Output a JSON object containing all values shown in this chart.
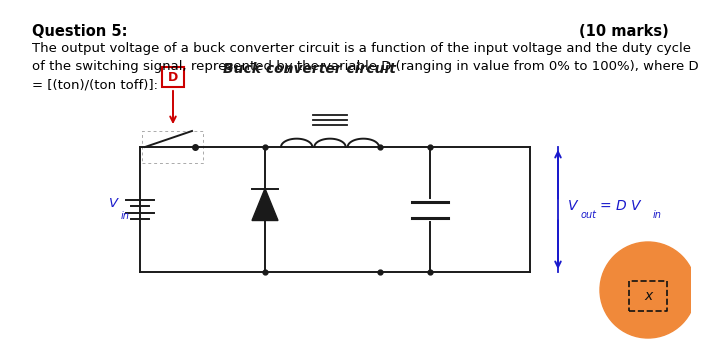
{
  "title_left": "Question 5:",
  "title_right": "(10 marks)",
  "line1": "The output voltage of a buck converter circuit is a function of the input voltage and the duty cycle",
  "line2": "of the switching signal, represented by the variable D (ranging in value from 0% to 100%), where D",
  "line3": "= [(ton)/(ton toff)]:",
  "circuit_title": "Buck converter circuit",
  "D_box_label": "D",
  "D_box_color": "#cc0000",
  "background_color": "#ffffff",
  "text_color": "#000000",
  "circuit_color": "#1a1a1a",
  "blue_color": "#1a1acc",
  "orange_color": "#f0893a",
  "title_fontsize": 10.5,
  "body_fontsize": 9.5
}
